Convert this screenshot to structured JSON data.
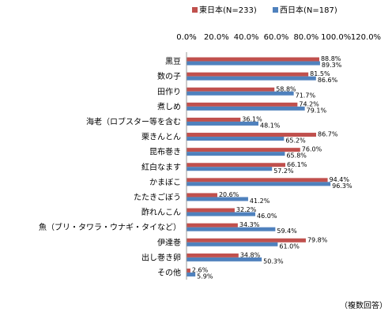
{
  "chart_data": {
    "type": "bar",
    "orientation": "horizontal",
    "categories": [
      "黒豆",
      "数の子",
      "田作り",
      "煮しめ",
      "海老（ロブスター等を含む",
      "栗きんとん",
      "昆布巻き",
      "紅白なます",
      "かまぼこ",
      "たたきごぼう",
      "酢れんこん",
      "魚（ブリ・タワラ・ウナギ・タイなど）",
      "伊達巻",
      "出し巻き卵",
      "その他"
    ],
    "series": [
      {
        "name": "東日本(N=233)",
        "color": "#c0504d",
        "values": [
          88.8,
          81.5,
          58.8,
          74.2,
          36.1,
          86.7,
          76.0,
          66.1,
          94.4,
          20.6,
          32.2,
          34.3,
          79.8,
          34.8,
          2.6
        ],
        "labels": [
          "88.8%",
          "81.5%",
          "58.8%",
          "74.2%",
          "36.1%",
          "86.7%",
          "76.0%",
          "66.1%",
          "94.4%",
          "20.6%",
          "32.2%",
          "34.3%",
          "79.8%",
          "34.8%",
          "2.6%"
        ]
      },
      {
        "name": "西日本(N=187)",
        "color": "#4f81bd",
        "values": [
          89.3,
          86.6,
          71.7,
          79.1,
          48.1,
          65.2,
          65.8,
          57.2,
          96.3,
          41.2,
          46.0,
          59.4,
          61.0,
          50.3,
          5.9
        ],
        "labels": [
          "89.3%",
          "86.6%",
          "71.7%",
          "79.1%",
          "48.1%",
          "65.2%",
          "65.8%",
          "57.2%",
          "96.3%",
          "41.2%",
          "46.0%",
          "59.4%",
          "61.0%",
          "50.3%",
          "5.9%"
        ]
      }
    ],
    "xlim": [
      0,
      120
    ],
    "xticks": [
      "0.0%",
      "20.0%",
      "40.0%",
      "60.0%",
      "80.0%",
      "100.0%",
      "120.0%"
    ],
    "grid": false,
    "legend_position": "top"
  },
  "note": "（複数回答）"
}
